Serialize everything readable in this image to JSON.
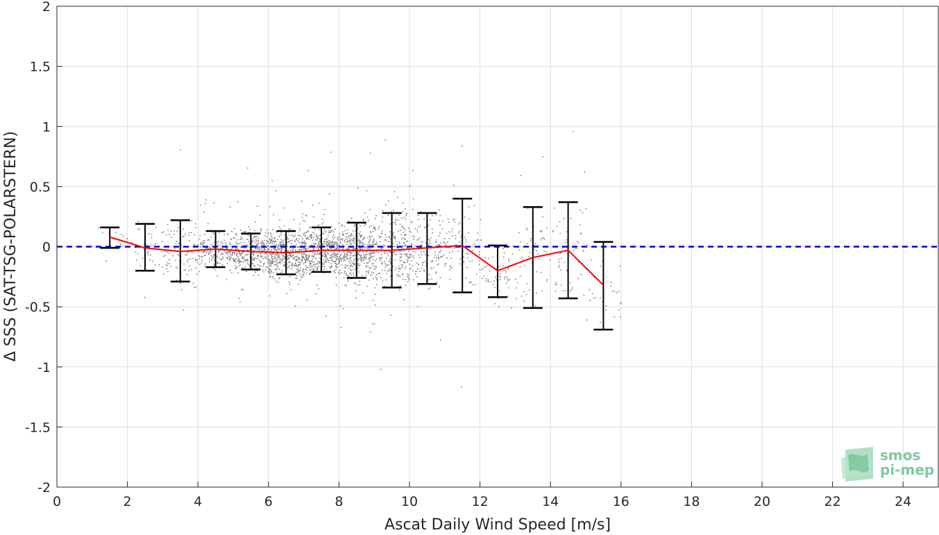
{
  "chart_data": {
    "type": "scatter",
    "xlabel": "Ascat Daily Wind Speed [m/s]",
    "ylabel": "Δ SSS (SAT-TSG-POLARSTERN)",
    "xlim": [
      0,
      25
    ],
    "ylim": [
      -2,
      2
    ],
    "xticks": [
      0,
      2,
      4,
      6,
      8,
      10,
      12,
      14,
      16,
      18,
      20,
      22,
      24
    ],
    "yticks": [
      -2,
      -1.5,
      -1,
      -0.5,
      0,
      0.5,
      1,
      1.5,
      2
    ],
    "xtick_labels": [
      "0",
      "2",
      "4",
      "6",
      "8",
      "10",
      "12",
      "14",
      "16",
      "18",
      "20",
      "22",
      "24"
    ],
    "ytick_labels": [
      "-2",
      "-1.5",
      "-1",
      "-0.5",
      "0",
      "0.5",
      "1",
      "1.5",
      "2"
    ],
    "grid": true,
    "reference_line": {
      "y": 0,
      "style": "dashed",
      "color": "#0000dd"
    },
    "scatter_color": "#808080",
    "mean_line_color": "#ff0000",
    "errorbar_color": "#000000",
    "bins": {
      "x": [
        1.5,
        2.5,
        3.5,
        4.5,
        5.5,
        6.5,
        7.5,
        8.5,
        9.5,
        10.5,
        11.5,
        12.5,
        13.5,
        14.5,
        15.5
      ],
      "mean": [
        0.08,
        -0.01,
        -0.04,
        -0.02,
        -0.04,
        -0.05,
        -0.03,
        -0.03,
        -0.03,
        -0.01,
        0.01,
        -0.2,
        -0.09,
        -0.03,
        -0.32
      ],
      "upper": [
        0.16,
        0.19,
        0.22,
        0.13,
        0.11,
        0.13,
        0.16,
        0.2,
        0.28,
        0.28,
        0.4,
        0.01,
        0.33,
        0.37,
        0.04
      ],
      "lower": [
        -0.01,
        -0.2,
        -0.29,
        -0.17,
        -0.19,
        -0.23,
        -0.21,
        -0.26,
        -0.34,
        -0.31,
        -0.38,
        -0.42,
        -0.51,
        -0.43,
        -0.69
      ]
    },
    "scatter_density": {
      "description_free_bins_x": [
        1.5,
        2.5,
        3.5,
        4.5,
        5.5,
        6.5,
        7.5,
        8.5,
        9.5,
        10.5,
        11.5,
        12.5,
        13.5,
        14.5,
        15.5
      ],
      "count_weight": [
        10,
        40,
        90,
        180,
        320,
        420,
        430,
        400,
        260,
        150,
        80,
        60,
        60,
        60,
        30
      ],
      "spread": [
        0.08,
        0.18,
        0.28,
        0.15,
        0.17,
        0.2,
        0.2,
        0.25,
        0.3,
        0.3,
        0.38,
        0.25,
        0.4,
        0.4,
        0.35
      ]
    }
  },
  "logo": {
    "line1": "smos",
    "line2": "pi-mep",
    "color": "#7fc9a0"
  }
}
